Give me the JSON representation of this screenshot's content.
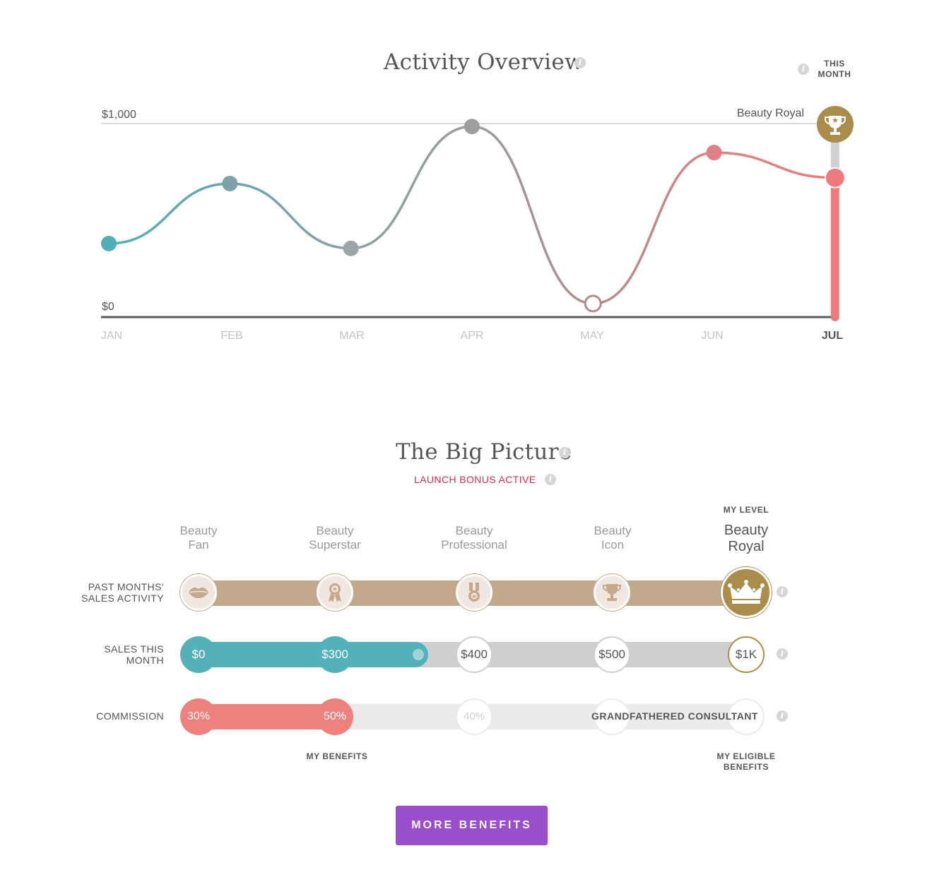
{
  "activity": {
    "title": "Activity Overview",
    "this_month_label": "THIS MONTH",
    "y_top_label": "$1,000",
    "y_bottom_label": "$0",
    "top_line_label": "Beauty Royal",
    "months": [
      "JAN",
      "FEB",
      "MAR",
      "APR",
      "MAY",
      "JUN",
      "JUL"
    ],
    "current_month": "JUL"
  },
  "chart_data": {
    "type": "line",
    "categories": [
      "JAN",
      "FEB",
      "MAR",
      "APR",
      "MAY",
      "JUN",
      "JUL"
    ],
    "values": [
      380,
      690,
      355,
      985,
      70,
      850,
      720
    ],
    "ylim": [
      0,
      1000
    ],
    "y_ticks": [
      "$0",
      "$1,000"
    ],
    "reference_line": {
      "value": 1000,
      "label": "Beauty Royal"
    },
    "colors": [
      "#4fb0b8",
      "#7da3a8",
      "#9aa6a7",
      "#9e9e9e",
      "#b48a8c",
      "#e08084",
      "#ee7b7b"
    ],
    "hollow_point": "MAY",
    "current_month": "JUL"
  },
  "big_picture": {
    "title": "The Big Picture",
    "bonus_status": "LAUNCH BONUS ACTIVE",
    "my_level_label": "MY LEVEL",
    "levels": [
      {
        "line1": "Beauty",
        "line2": "Fan",
        "icon": "lips-icon"
      },
      {
        "line1": "Beauty",
        "line2": "Superstar",
        "icon": "ribbon-award-icon"
      },
      {
        "line1": "Beauty",
        "line2": "Professional",
        "icon": "medal-icon"
      },
      {
        "line1": "Beauty",
        "line2": "Icon",
        "icon": "trophy-icon"
      },
      {
        "line1": "Beauty",
        "line2": "Royal",
        "icon": "crown-icon"
      }
    ],
    "rows": {
      "past_months": {
        "label_line1": "PAST MONTHS'",
        "label_line2": "SALES ACTIVITY"
      },
      "sales_this_month": {
        "label_line1": "SALES THIS",
        "label_line2": "MONTH",
        "thresholds": [
          "$0",
          "$300",
          "$400",
          "$500",
          "$1K"
        ],
        "progress_amount": 360
      },
      "commission": {
        "label": "COMMISSION",
        "rates": [
          "30%",
          "50%",
          "40%"
        ],
        "grandfathered_label": "GRANDFATHERED CONSULTANT"
      }
    },
    "my_benefits_label": "MY BENEFITS",
    "my_eligible_benefits_label": "MY ELIGIBLE BENEFITS",
    "more_benefits_button": "MORE BENEFITS"
  },
  "colors": {
    "teal": "#53b1ba",
    "coral": "#ee817d",
    "gold": "#ab8d4b",
    "tan": "#c3a98b",
    "purple": "#9a4ec9",
    "bonus_red": "#d6304d",
    "gray_track": "#cfcfcf"
  }
}
